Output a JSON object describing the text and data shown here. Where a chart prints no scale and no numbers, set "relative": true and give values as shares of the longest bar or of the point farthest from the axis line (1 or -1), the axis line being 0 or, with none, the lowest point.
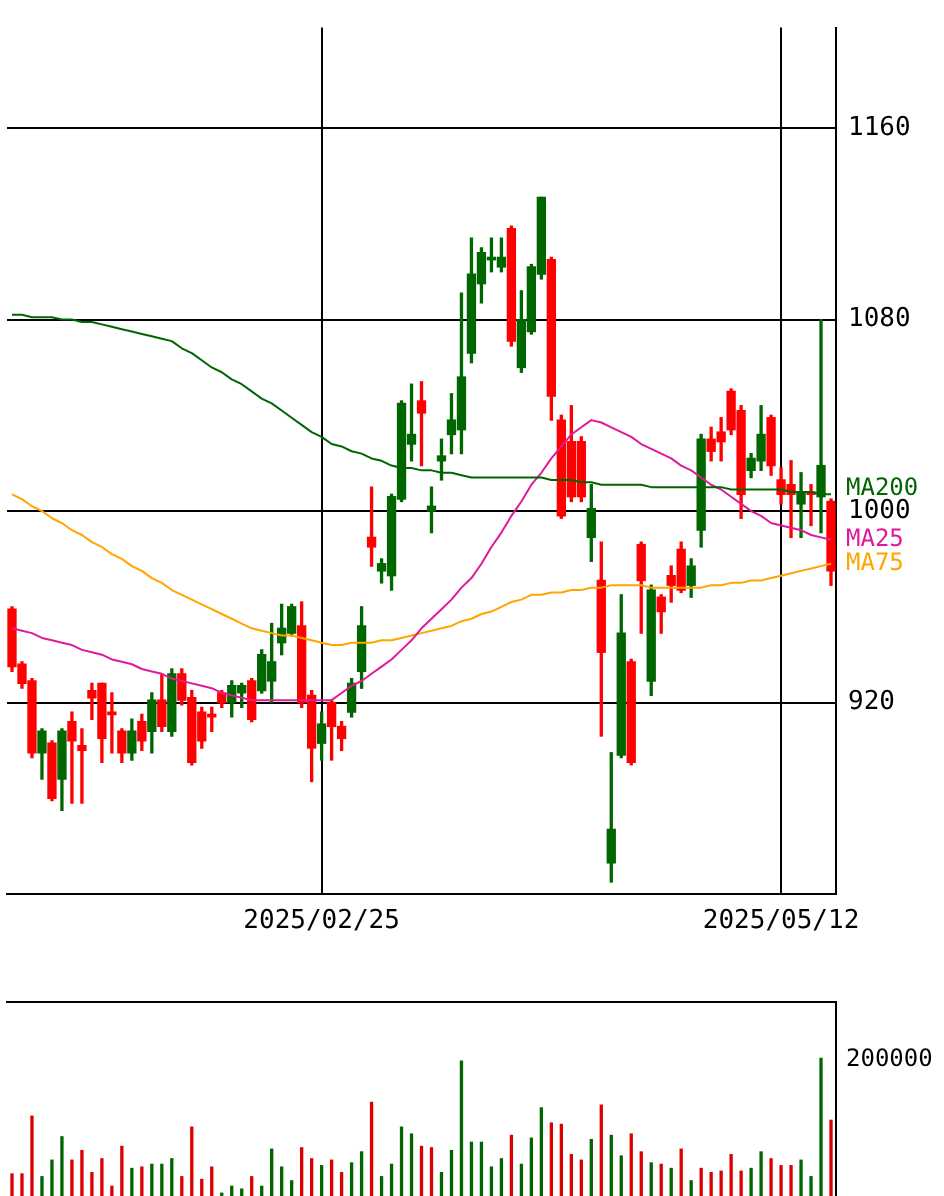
{
  "chart_data": [
    {
      "type": "candlestick",
      "ylim": [
        840,
        1202
      ],
      "yticks": [
        920,
        1000,
        1080,
        1160
      ],
      "grid": true,
      "legend": false,
      "marker": "none",
      "categories": [
        null,
        null,
        null,
        null,
        null,
        null,
        null,
        null,
        null,
        null,
        null,
        null,
        null,
        null,
        null,
        null,
        null,
        null,
        null,
        null,
        null,
        null,
        null,
        null,
        null,
        null,
        null,
        null,
        null,
        null,
        null,
        "2025/02/25",
        null,
        null,
        null,
        null,
        null,
        null,
        null,
        null,
        null,
        null,
        null,
        null,
        null,
        null,
        null,
        null,
        null,
        null,
        null,
        null,
        null,
        null,
        null,
        null,
        null,
        null,
        null,
        null,
        null,
        null,
        null,
        null,
        null,
        null,
        null,
        null,
        null,
        null,
        null,
        null,
        null,
        null,
        null,
        null,
        null,
        "2025/05/12",
        null,
        null,
        null,
        null,
        null
      ],
      "series": [
        {
          "type": "candlestick",
          "ohlc": [
            [
              959,
              960,
              933,
              935
            ],
            [
              936,
              937,
              926,
              928
            ],
            [
              929,
              930,
              897,
              899
            ],
            [
              899,
              909,
              888,
              908
            ],
            [
              903,
              904,
              879,
              880
            ],
            [
              888,
              909,
              875,
              908
            ],
            [
              912,
              916,
              878,
              904
            ],
            [
              902,
              909,
              878,
              900
            ],
            [
              925,
              928,
              913,
              922
            ],
            [
              928,
              928,
              895,
              905
            ],
            [
              916,
              924,
              899,
              915
            ],
            [
              908,
              909,
              895,
              899
            ],
            [
              899,
              913,
              896,
              908
            ],
            [
              912,
              915,
              900,
              904
            ],
            [
              908,
              924,
              899,
              921
            ],
            [
              921,
              932,
              908,
              910
            ],
            [
              908,
              934,
              906,
              932
            ],
            [
              932,
              934,
              919,
              921
            ],
            [
              922,
              925,
              894,
              895
            ],
            [
              916,
              918,
              901,
              904
            ],
            [
              915,
              918,
              908,
              914
            ],
            [
              924,
              925,
              918,
              920
            ],
            [
              920,
              929,
              914,
              927
            ],
            [
              924,
              928,
              918,
              927
            ],
            [
              929,
              930,
              912,
              913
            ],
            [
              925,
              942,
              924,
              940
            ],
            [
              929,
              953,
              920,
              937
            ],
            [
              945,
              961,
              940,
              951
            ],
            [
              949,
              961,
              948,
              960
            ],
            [
              952,
              962,
              918,
              920
            ],
            [
              923,
              925,
              887,
              901
            ],
            [
              903,
              916,
              896,
              911
            ],
            [
              920,
              921,
              896,
              910
            ],
            [
              910,
              912,
              900,
              905
            ],
            [
              916,
              930,
              914,
              928
            ],
            [
              933,
              960,
              926,
              952
            ],
            [
              989,
              1010,
              977,
              985
            ],
            [
              975,
              980,
              970,
              978
            ],
            [
              973,
              1007,
              967,
              1006
            ],
            [
              1005,
              1046,
              1004,
              1045
            ],
            [
              1028,
              1053,
              1021,
              1032
            ],
            [
              1046,
              1054,
              1019,
              1041
            ],
            [
              1000,
              1010,
              991,
              1002
            ],
            [
              1021,
              1030,
              1013,
              1023
            ],
            [
              1032,
              1049,
              1024,
              1038
            ],
            [
              1034,
              1091,
              1024,
              1056
            ],
            [
              1066,
              1114,
              1062,
              1099
            ],
            [
              1095,
              1110,
              1087,
              1108
            ],
            [
              1105,
              1114,
              1100,
              1106
            ],
            [
              1102,
              1114,
              1100,
              1106
            ],
            [
              1118,
              1119,
              1069,
              1071
            ],
            [
              1060,
              1092,
              1058,
              1080
            ],
            [
              1075,
              1103,
              1074,
              1102
            ],
            [
              1099,
              1131,
              1097,
              1131
            ],
            [
              1105,
              1106,
              1038,
              1048
            ],
            [
              1038,
              1040,
              997,
              998
            ],
            [
              1029,
              1044,
              1004,
              1006
            ],
            [
              1029,
              1031,
              1004,
              1006
            ],
            [
              989,
              1011,
              979,
              1001
            ],
            [
              971,
              987,
              906,
              941
            ],
            [
              853,
              899,
              845,
              867
            ],
            [
              898,
              965,
              897,
              949
            ],
            [
              937,
              938,
              894,
              895
            ],
            [
              986,
              987,
              949,
              971
            ],
            [
              929,
              969,
              923,
              967
            ],
            [
              964,
              965,
              949,
              958
            ],
            [
              973,
              977,
              962,
              969
            ],
            [
              984,
              987,
              966,
              967
            ],
            [
              969,
              980,
              964,
              977
            ],
            [
              992,
              1032,
              985,
              1030
            ],
            [
              1030,
              1035,
              1021,
              1025
            ],
            [
              1033,
              1039,
              1021,
              1029
            ],
            [
              1050,
              1051,
              1032,
              1034
            ],
            [
              1042,
              1044,
              997,
              1007
            ],
            [
              1017,
              1024,
              1014,
              1022
            ],
            [
              1021,
              1044,
              1017,
              1032
            ],
            [
              1039,
              1040,
              1015,
              1019
            ],
            [
              1013,
              1018,
              1003,
              1007
            ],
            [
              1011,
              1021,
              989,
              1007
            ],
            [
              1003,
              1016,
              989,
              1008
            ],
            [
              1008,
              1011,
              994,
              1007
            ],
            [
              1006,
              1080,
              991,
              1019
            ],
            [
              1004,
              1005,
              969,
              975
            ]
          ]
        },
        {
          "type": "line",
          "name": "MA200",
          "color": "#006400",
          "values": [
            1082,
            1082,
            1081,
            1081,
            1081,
            1080,
            1080,
            1079,
            1079,
            1078,
            1077,
            1076,
            1075,
            1074,
            1073,
            1072,
            1071,
            1068,
            1066,
            1063,
            1060,
            1058,
            1055,
            1053,
            1050,
            1047,
            1045,
            1042,
            1039,
            1036,
            1033,
            1031,
            1028,
            1027,
            1025,
            1024,
            1022,
            1021,
            1019,
            1018,
            1018,
            1017,
            1017,
            1016,
            1016,
            1015,
            1014,
            1014,
            1014,
            1014,
            1014,
            1014,
            1014,
            1014,
            1013,
            1013,
            1013,
            1012,
            1012,
            1011,
            1011,
            1011,
            1011,
            1011,
            1010,
            1010,
            1010,
            1010,
            1010,
            1010,
            1010,
            1010,
            1009,
            1009,
            1009,
            1009,
            1009,
            1009,
            1008,
            1008,
            1008,
            1007,
            1007
          ]
        },
        {
          "type": "line",
          "name": "MA25",
          "color": "#e0199b",
          "values": [
            951,
            950,
            949,
            947,
            946,
            945,
            944,
            942,
            941,
            940,
            938,
            937,
            936,
            934,
            933,
            932,
            930,
            929,
            928,
            927,
            926,
            924,
            923,
            922,
            921,
            921,
            921,
            921,
            921,
            921,
            921,
            921,
            921,
            924,
            927,
            929,
            932,
            935,
            938,
            942,
            946,
            951,
            955,
            959,
            963,
            968,
            972,
            978,
            985,
            991,
            998,
            1004,
            1011,
            1016,
            1022,
            1027,
            1032,
            1035,
            1038,
            1037,
            1035,
            1033,
            1031,
            1028,
            1026,
            1024,
            1022,
            1019,
            1017,
            1014,
            1011,
            1009,
            1006,
            1003,
            1000,
            998,
            995,
            994,
            993,
            992,
            990,
            989,
            988
          ]
        },
        {
          "type": "line",
          "name": "MA75",
          "color": "#ffa500",
          "values": [
            1007,
            1005,
            1002,
            1000,
            997,
            995,
            992,
            990,
            987,
            985,
            982,
            980,
            977,
            975,
            972,
            970,
            967,
            965,
            963,
            961,
            959,
            957,
            955,
            953,
            951,
            950,
            949,
            948,
            948,
            947,
            946,
            945,
            944,
            944,
            945,
            945,
            945,
            946,
            946,
            947,
            948,
            949,
            950,
            951,
            952,
            954,
            955,
            957,
            958,
            960,
            962,
            963,
            965,
            965,
            966,
            966,
            967,
            967,
            968,
            968,
            969,
            969,
            969,
            969,
            968,
            968,
            968,
            968,
            968,
            968,
            969,
            969,
            970,
            970,
            971,
            971,
            972,
            973,
            974,
            975,
            976,
            977,
            978
          ]
        }
      ]
    },
    {
      "type": "bar",
      "relative": true,
      "legend": false,
      "annotations": [
        "200000"
      ],
      "categories": [
        null,
        null,
        null,
        null,
        null,
        null,
        null,
        null,
        null,
        null,
        null,
        null,
        null,
        null,
        null,
        null,
        null,
        null,
        null,
        null,
        null,
        null,
        null,
        null,
        null,
        null,
        null,
        null,
        null,
        null,
        null,
        null,
        null,
        null,
        null,
        null,
        null,
        null,
        null,
        null,
        null,
        null,
        null,
        null,
        null,
        null,
        null,
        null,
        null,
        null,
        null,
        null,
        null,
        null,
        null,
        null,
        null,
        null,
        null,
        null,
        null,
        null,
        null,
        null,
        null,
        null,
        null,
        null,
        null,
        null,
        null,
        null,
        null,
        null,
        null,
        null,
        null,
        null,
        null,
        null,
        null,
        null,
        null
      ],
      "values": [
        0.16,
        0.16,
        0.58,
        0.14,
        0.26,
        0.43,
        0.26,
        0.33,
        0.17,
        0.27,
        0.07,
        0.36,
        0.2,
        0.21,
        0.23,
        0.23,
        0.27,
        0.14,
        0.5,
        0.12,
        0.21,
        0.02,
        0.07,
        0.05,
        0.14,
        0.07,
        0.34,
        0.21,
        0.11,
        0.35,
        0.27,
        0.22,
        0.26,
        0.17,
        0.24,
        0.32,
        0.68,
        0.14,
        0.23,
        0.5,
        0.45,
        0.36,
        0.35,
        0.17,
        0.33,
        0.98,
        0.39,
        0.39,
        0.21,
        0.27,
        0.44,
        0.23,
        0.42,
        0.64,
        0.53,
        0.52,
        0.3,
        0.26,
        0.41,
        0.66,
        0.44,
        0.29,
        0.45,
        0.32,
        0.24,
        0.23,
        0.2,
        0.34,
        0.11,
        0.2,
        0.17,
        0.18,
        0.3,
        0.18,
        0.2,
        0.32,
        0.27,
        0.22,
        0.22,
        0.26,
        0.14,
        1,
        0.55
      ],
      "colors": [
        "#dd0000",
        "#dd0000",
        "#dd0000",
        "#006600",
        "#006600",
        "#006600",
        "#dd0000",
        "#dd0000",
        "#dd0000",
        "#dd0000",
        "#dd0000",
        "#dd0000",
        "#006600",
        "#dd0000",
        "#006600",
        "#006600",
        "#006600",
        "#dd0000",
        "#dd0000",
        "#dd0000",
        "#dd0000",
        "#006600",
        "#006600",
        "#006600",
        "#dd0000",
        "#006600",
        "#006600",
        "#006600",
        "#006600",
        "#dd0000",
        "#dd0000",
        "#006600",
        "#dd0000",
        "#dd0000",
        "#006600",
        "#006600",
        "#dd0000",
        "#006600",
        "#006600",
        "#006600",
        "#006600",
        "#dd0000",
        "#dd0000",
        "#006600",
        "#006600",
        "#006600",
        "#006600",
        "#006600",
        "#006600",
        "#006600",
        "#dd0000",
        "#006600",
        "#006600",
        "#006600",
        "#dd0000",
        "#dd0000",
        "#dd0000",
        "#dd0000",
        "#006600",
        "#dd0000",
        "#006600",
        "#006600",
        "#dd0000",
        "#dd0000",
        "#006600",
        "#dd0000",
        "#006600",
        "#dd0000",
        "#006600",
        "#dd0000",
        "#dd0000",
        "#dd0000",
        "#dd0000",
        "#dd0000",
        "#006600",
        "#006600",
        "#dd0000",
        "#dd0000",
        "#dd0000",
        "#006600",
        "#006600",
        "#006600",
        "#dd0000"
      ]
    }
  ]
}
